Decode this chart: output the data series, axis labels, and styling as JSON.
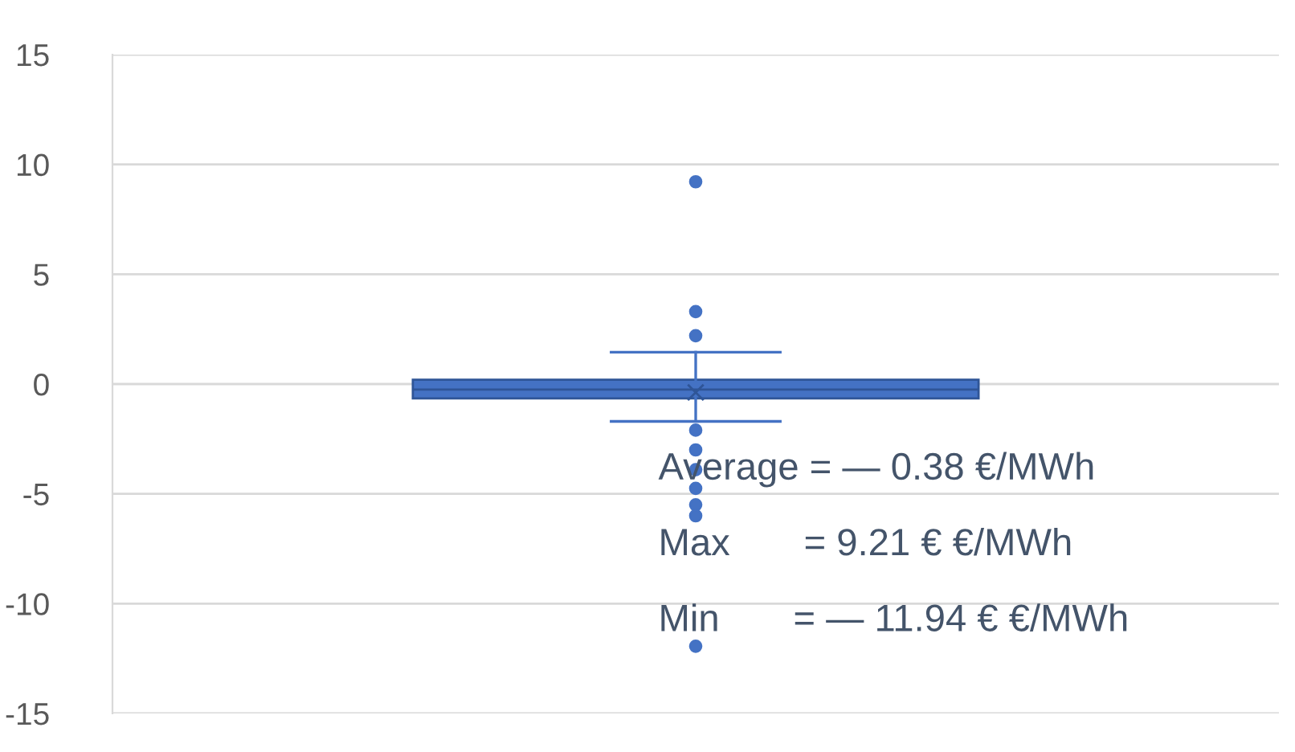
{
  "chart_data": {
    "type": "box",
    "categories": [
      null
    ],
    "boxes": [
      {
        "low": -1.7,
        "q1": -0.65,
        "median": -0.25,
        "q3": 0.2,
        "high": 1.45,
        "mean": -0.38,
        "outliers": [
          9.21,
          3.3,
          2.2,
          -2.1,
          -3.0,
          -3.9,
          -4.75,
          -5.5,
          -6.0,
          -11.94
        ]
      }
    ],
    "color": "#4472c4",
    "ylim": [
      -15,
      15
    ],
    "yticks": [
      -15,
      -10,
      -5,
      0,
      5,
      10,
      15
    ],
    "grid": "y",
    "annotations": [
      "Average = — 0.38 €/MWh",
      "Max       = 9.21 € €/MWh",
      "Min       = — 11.94 € €/MWh"
    ]
  }
}
